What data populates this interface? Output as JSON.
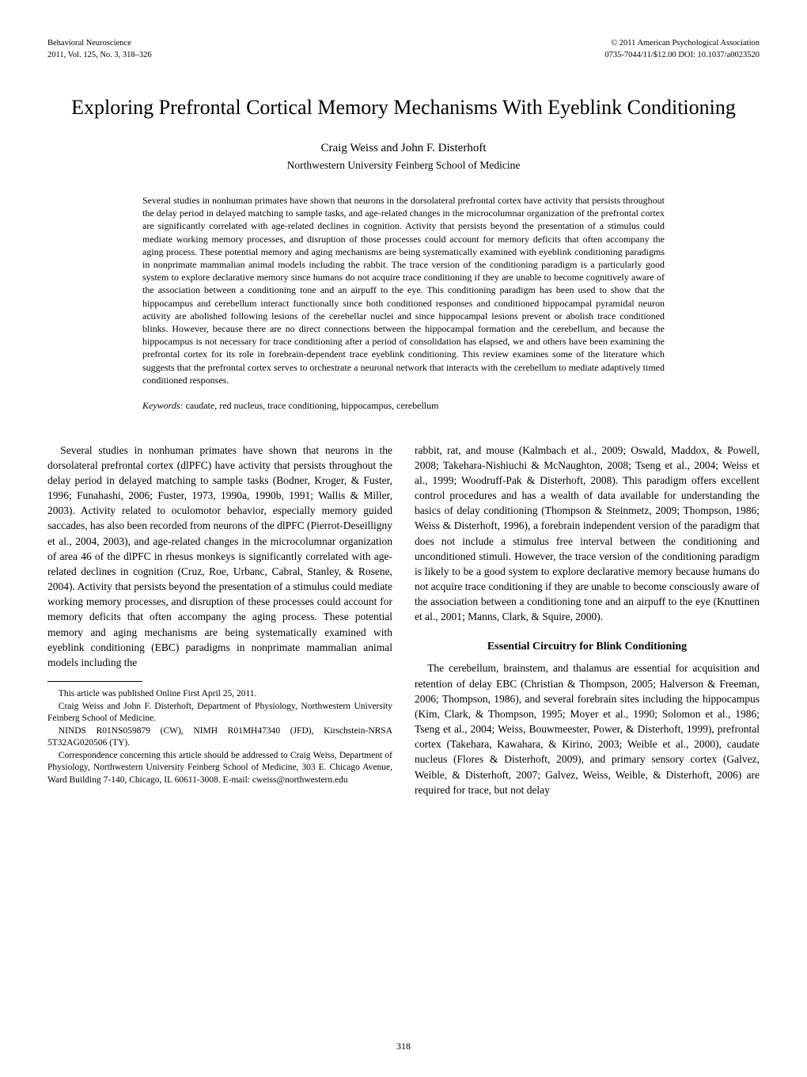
{
  "header": {
    "journal": "Behavioral Neuroscience",
    "volIssue": "2011, Vol. 125, No. 3, 318–326",
    "copyright": "© 2011 American Psychological Association",
    "issnDoi": "0735-7044/11/$12.00   DOI: 10.1037/a0023520"
  },
  "title": "Exploring Prefrontal Cortical Memory Mechanisms With Eyeblink Conditioning",
  "authors": "Craig Weiss and John F. Disterhoft",
  "affiliation": "Northwestern University Feinberg School of Medicine",
  "abstract": "Several studies in nonhuman primates have shown that neurons in the dorsolateral prefrontal cortex have activity that persists throughout the delay period in delayed matching to sample tasks, and age-related changes in the microcolumnar organization of the prefrontal cortex are significantly correlated with age-related declines in cognition. Activity that persists beyond the presentation of a stimulus could mediate working memory processes, and disruption of those processes could account for memory deficits that often accompany the aging process. These potential memory and aging mechanisms are being systematically examined with eyeblink conditioning paradigms in nonprimate mammalian animal models including the rabbit. The trace version of the conditioning paradigm is a particularly good system to explore declarative memory since humans do not acquire trace conditioning if they are unable to become cognitively aware of the association between a conditioning tone and an airpuff to the eye. This conditioning paradigm has been used to show that the hippocampus and cerebellum interact functionally since both conditioned responses and conditioned hippocampal pyramidal neuron activity are abolished following lesions of the cerebellar nuclei and since hippocampal lesions prevent or abolish trace conditioned blinks. However, because there are no direct connections between the hippocampal formation and the cerebellum, and because the hippocampus is not necessary for trace conditioning after a period of consolidation has elapsed, we and others have been examining the prefrontal cortex for its role in forebrain-dependent trace eyeblink conditioning. This review examines some of the literature which suggests that the prefrontal cortex serves to orchestrate a neuronal network that interacts with the cerebellum to mediate adaptively timed conditioned responses.",
  "keywordsLabel": "Keywords:",
  "keywords": " caudate, red nucleus, trace conditioning, hippocampus, cerebellum",
  "body": {
    "p1": "Several studies in nonhuman primates have shown that neurons in the dorsolateral prefrontal cortex (dlPFC) have activity that persists throughout the delay period in delayed matching to sample tasks (Bodner, Kroger, & Fuster, 1996; Funahashi, 2006; Fuster, 1973, 1990a, 1990b, 1991; Wallis & Miller, 2003). Activity related to oculomotor behavior, especially memory guided saccades, has also been recorded from neurons of the dlPFC (Pierrot-Deseilligny et al., 2004, 2003), and age-related changes in the microcolumnar organization of area 46 of the dlPFC in rhesus monkeys is significantly correlated with age-related declines in cognition (Cruz, Roe, Urbanc, Cabral, Stanley, & Rosene, 2004). Activity that persists beyond the presentation of a stimulus could mediate working memory processes, and disruption of these processes could account for memory deficits that often accompany the aging process. These potential memory and aging mechanisms are being systematically examined with eyeblink conditioning (EBC) paradigms in nonprimate mammalian animal models including the",
    "p1b": "rabbit, rat, and mouse (Kalmbach et al., 2009; Oswald, Maddox, & Powell, 2008; Takehara-Nishiuchi & McNaughton, 2008; Tseng et al., 2004; Weiss et al., 1999; Woodruff-Pak & Disterhoft, 2008). This paradigm offers excellent control procedures and has a wealth of data available for understanding the basics of delay conditioning (Thompson & Steinmetz, 2009; Thompson, 1986; Weiss & Disterhoft, 1996), a forebrain independent version of the paradigm that does not include a stimulus free interval between the conditioning and unconditioned stimuli. However, the trace version of the conditioning paradigm is likely to be a good system to explore declarative memory because humans do not acquire trace conditioning if they are unable to become consciously aware of the association between a conditioning tone and an airpuff to the eye (Knuttinen et al., 2001; Manns, Clark, & Squire, 2000).",
    "section1": "Essential Circuitry for Blink Conditioning",
    "p2": "The cerebellum, brainstem, and thalamus are essential for acquisition and retention of delay EBC (Christian & Thompson, 2005; Halverson & Freeman, 2006; Thompson, 1986), and several forebrain sites including the hippocampus (Kim, Clark, & Thompson, 1995; Moyer et al., 1990; Solomon et al., 1986; Tseng et al., 2004; Weiss, Bouwmeester, Power, & Disterhoft, 1999), prefrontal cortex (Takehara, Kawahara, & Kirino, 2003; Weible et al., 2000), caudate nucleus (Flores & Disterhoft, 2009), and primary sensory cortex (Galvez, Weible, & Disterhoft, 2007; Galvez, Weiss, Weible, & Disterhoft, 2006) are required for trace, but not delay"
  },
  "footnotes": {
    "f1": "This article was published Online First April 25, 2011.",
    "f2": "Craig Weiss and John F. Disterhoft, Department of Physiology, Northwestern University Feinberg School of Medicine.",
    "f3": "NINDS R01NS059879 (CW), NIMH R01MH47340 (JFD), Kirschstein-NRSA 5T32AG020506 (TY).",
    "f4": "Correspondence concerning this article should be addressed to Craig Weiss, Department of Physiology, Northwestern University Feinberg School of Medicine, 303 E. Chicago Avenue, Ward Building 7-140, Chicago, IL 60611-3008. E-mail: cweiss@northwestern.edu"
  },
  "pageNumber": "318"
}
